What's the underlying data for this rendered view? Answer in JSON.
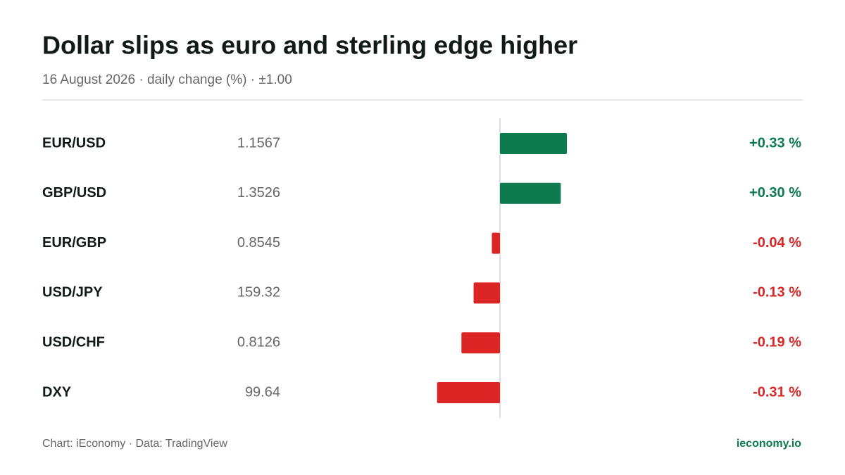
{
  "chart_data": {
    "type": "bar",
    "title": "Dollar slips as euro and sterling edge higher",
    "subtitle": "16 August 2026 · daily change (%) · ±1.00",
    "categories": [
      "EUR/USD",
      "GBP/USD",
      "EUR/GBP",
      "USD/JPY",
      "USD/CHF",
      "DXY"
    ],
    "rates": [
      "1.1567",
      "1.3526",
      "0.8545",
      "159.32",
      "0.8126",
      "99.64"
    ],
    "values": [
      0.33,
      0.3,
      -0.04,
      -0.13,
      -0.19,
      -0.31
    ],
    "value_labels": [
      "+0.33 %",
      "+0.30 %",
      "-0.04 %",
      "-0.13 %",
      "-0.19 %",
      "-0.31 %"
    ],
    "positive_color": "#0e7a4f",
    "negative_color": "#dc2626",
    "xlim": [
      -1,
      1
    ],
    "source": "Chart: iEconomy · Data: TradingView",
    "brand": "ieconomy.io"
  }
}
